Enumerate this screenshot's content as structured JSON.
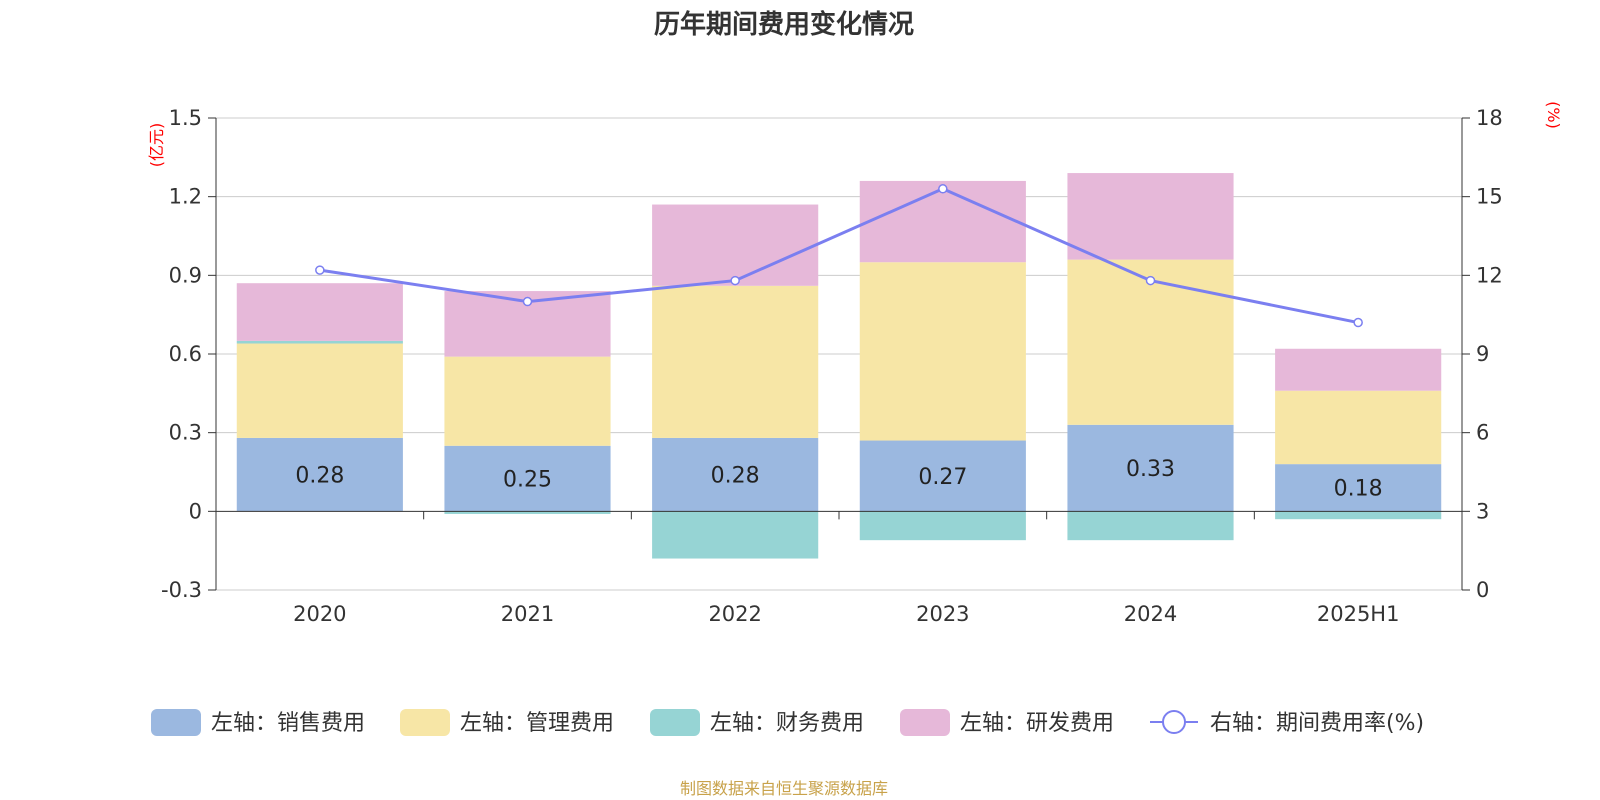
{
  "chart_data": {
    "type": "bar",
    "stacked": true,
    "title": "历年期间费用变化情况",
    "categories": [
      "2020",
      "2021",
      "2022",
      "2023",
      "2024",
      "2025H1"
    ],
    "left_axis": {
      "unit": "(亿元)",
      "ylim": [
        -0.3,
        1.5
      ],
      "ticks": [
        "-0.3",
        "0",
        "0.3",
        "0.6",
        "0.9",
        "1.2",
        "1.5"
      ]
    },
    "right_axis": {
      "unit": "(%)",
      "ylim": [
        0,
        18
      ],
      "ticks": [
        "0",
        "3",
        "6",
        "9",
        "12",
        "15",
        "18"
      ]
    },
    "series": [
      {
        "name": "左轴：销售费用",
        "type": "bar",
        "axis": "left",
        "color": "#9bb8e0",
        "values": [
          0.28,
          0.25,
          0.28,
          0.27,
          0.33,
          0.18
        ],
        "data_labels": [
          "0.28",
          "0.25",
          "0.28",
          "0.27",
          "0.33",
          "0.18"
        ]
      },
      {
        "name": "左轴：管理费用",
        "type": "bar",
        "axis": "left",
        "color": "#f7e6a6",
        "values": [
          0.36,
          0.34,
          0.58,
          0.68,
          0.63,
          0.28
        ]
      },
      {
        "name": "左轴：财务费用",
        "type": "bar",
        "axis": "left",
        "color": "#96d4d4",
        "values": [
          0.01,
          -0.01,
          -0.18,
          -0.11,
          -0.11,
          -0.03
        ]
      },
      {
        "name": "左轴：研发费用",
        "type": "bar",
        "axis": "left",
        "color": "#e6b8d9",
        "values": [
          0.22,
          0.25,
          0.31,
          0.31,
          0.33,
          0.16
        ]
      },
      {
        "name": "右轴：期间费用率(%)",
        "type": "line",
        "axis": "right",
        "color": "#7b7ff0",
        "values": [
          12.2,
          11.0,
          11.8,
          15.3,
          11.8,
          10.2
        ]
      }
    ],
    "grid": true,
    "legend_position": "bottom",
    "source": "制图数据来自恒生聚源数据库"
  }
}
